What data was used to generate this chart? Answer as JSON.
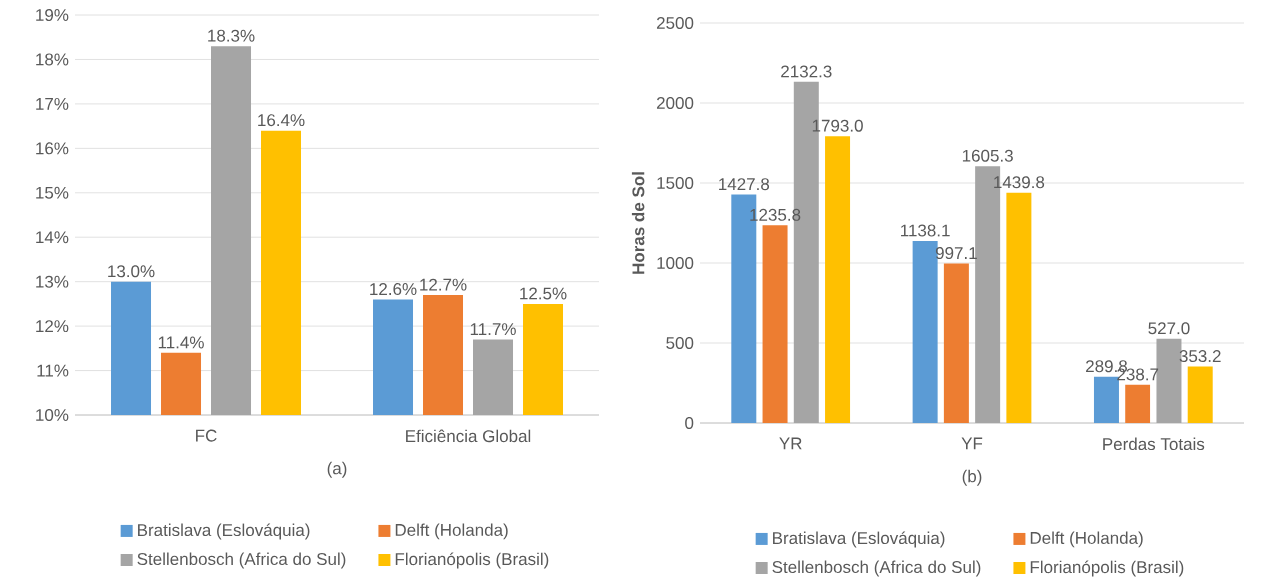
{
  "chart_data": [
    {
      "type": "bar",
      "xlabel": "(a)",
      "categories": [
        "FC",
        "Eficiência Global"
      ],
      "series": [
        {
          "name": "Bratislava (Eslováquia)",
          "color": "#5b9bd5",
          "values": [
            13.0,
            12.6
          ],
          "value_labels": [
            "13.0%",
            "12.6%"
          ]
        },
        {
          "name": "Delft (Holanda)",
          "color": "#ed7d31",
          "values": [
            11.4,
            12.7
          ],
          "value_labels": [
            "11.4%",
            "12.7%"
          ]
        },
        {
          "name": "Stellenbosch (Africa do Sul)",
          "color": "#a5a5a5",
          "values": [
            18.3,
            11.7
          ],
          "value_labels": [
            "18.3%",
            "11.7%"
          ]
        },
        {
          "name": "Florianópolis (Brasil)",
          "color": "#ffc000",
          "values": [
            16.4,
            12.5
          ],
          "value_labels": [
            "16.4%",
            "12.5%"
          ]
        }
      ],
      "ylim": [
        10,
        19
      ],
      "yticks": [
        {
          "value": 10,
          "label": "10%"
        },
        {
          "value": 11,
          "label": "11%"
        },
        {
          "value": 12,
          "label": "12%"
        },
        {
          "value": 13,
          "label": "13%"
        },
        {
          "value": 14,
          "label": "14%"
        },
        {
          "value": 15,
          "label": "15%"
        },
        {
          "value": 16,
          "label": "16%"
        },
        {
          "value": 17,
          "label": "17%"
        },
        {
          "value": 18,
          "label": "18%"
        },
        {
          "value": 19,
          "label": "19%"
        }
      ],
      "grid": "y",
      "legend": "bottom"
    },
    {
      "type": "bar",
      "xlabel": "(b)",
      "ylabel": "Horas de Sol",
      "categories": [
        "YR",
        "YF",
        "Perdas Totais"
      ],
      "series": [
        {
          "name": "Bratislava (Eslováquia)",
          "color": "#5b9bd5",
          "values": [
            1427.8,
            1138.1,
            289.8
          ],
          "value_labels": [
            "1427.8",
            "1138.1",
            "289.8"
          ]
        },
        {
          "name": "Delft (Holanda)",
          "color": "#ed7d31",
          "values": [
            1235.8,
            997.1,
            238.7
          ],
          "value_labels": [
            "1235.8",
            "997.1",
            "238.7"
          ]
        },
        {
          "name": "Stellenbosch (Africa do Sul)",
          "color": "#a5a5a5",
          "values": [
            2132.3,
            1605.3,
            527.0
          ],
          "value_labels": [
            "2132.3",
            "1605.3",
            "527.0"
          ]
        },
        {
          "name": "Florianópolis (Brasil)",
          "color": "#ffc000",
          "values": [
            1793.0,
            1439.8,
            353.2
          ],
          "value_labels": [
            "1793.0",
            "1439.8",
            "353.2"
          ]
        }
      ],
      "ylim": [
        0,
        2500
      ],
      "yticks": [
        0,
        500,
        1000,
        1500,
        2000,
        2500
      ],
      "grid": "y",
      "legend": "bottom"
    }
  ]
}
